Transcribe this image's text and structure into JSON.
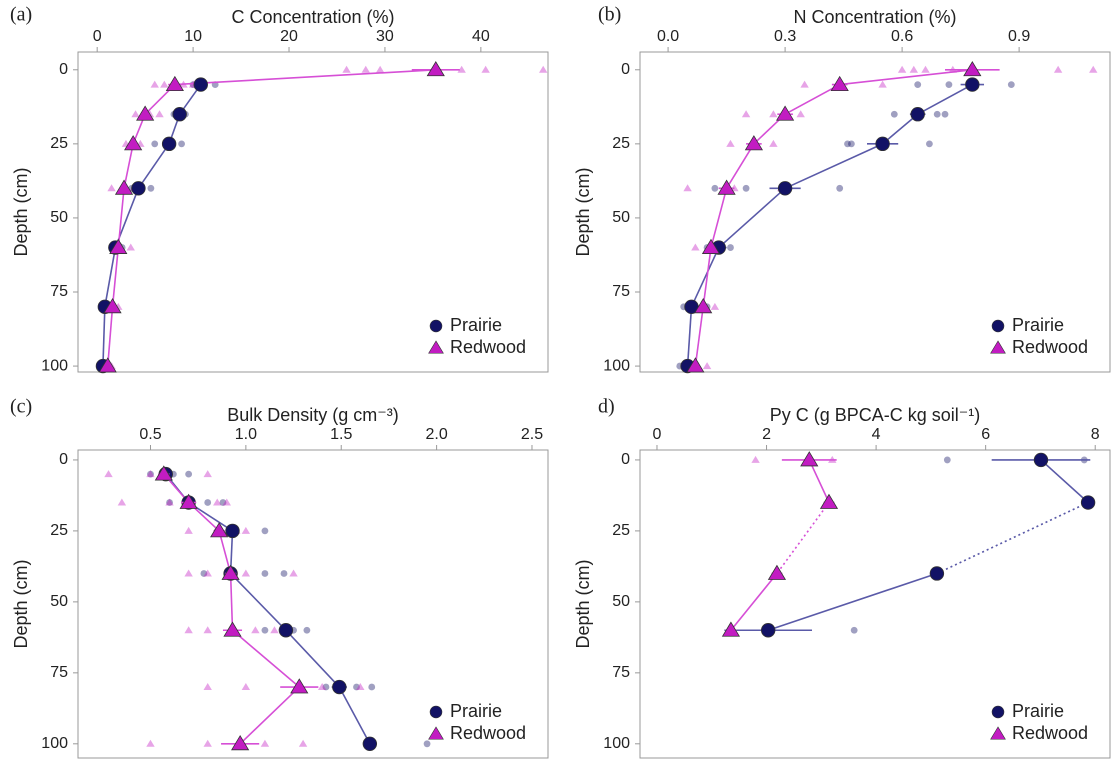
{
  "chart_data": [
    {
      "type": "line",
      "panel": "(a)",
      "title": "C Concentration (%)",
      "ylabel": "Depth (cm)",
      "xlim": [
        -2,
        47
      ],
      "ylim": [
        102,
        -6
      ],
      "xticks": [
        0,
        10,
        20,
        30,
        40
      ],
      "yticks": [
        0,
        25,
        50,
        75,
        100
      ],
      "legend": "bottom-right",
      "series": [
        {
          "name": "Prairie",
          "color": "#121265",
          "line_color": "#5a5aa8",
          "marker": "circle",
          "x": [
            10.8,
            8.6,
            7.5,
            4.3,
            1.9,
            0.8,
            0.6
          ],
          "y": [
            5,
            15,
            25,
            40,
            60,
            80,
            100
          ],
          "errors": [
            0.6,
            0.5,
            0.6,
            0.6,
            0.3,
            0.2,
            0.2
          ],
          "samples": [
            [
              10,
              5
            ],
            [
              12.3,
              5
            ],
            [
              8,
              15
            ],
            [
              9.2,
              15
            ],
            [
              6,
              25
            ],
            [
              8.8,
              25
            ],
            [
              3.6,
              40
            ],
            [
              5.6,
              40
            ],
            [
              1.5,
              60
            ],
            [
              2.6,
              60
            ],
            [
              0.5,
              80
            ],
            [
              1.2,
              80
            ],
            [
              0.3,
              100
            ],
            [
              0.9,
              100
            ]
          ]
        },
        {
          "name": "Redwood",
          "color": "#c21cc2",
          "line_color": "#d64fd6",
          "marker": "triangle",
          "x": [
            35.3,
            8.1,
            5.0,
            3.75,
            2.8,
            2.2,
            1.6,
            1.1
          ],
          "y": [
            0,
            5,
            15,
            25,
            40,
            60,
            80,
            100
          ],
          "errors": [
            2.5,
            0.7,
            0.4,
            0.4,
            0.3,
            0.3,
            0.2,
            0.2
          ],
          "samples": [
            [
              26,
              0
            ],
            [
              28,
              0
            ],
            [
              29.5,
              0
            ],
            [
              38,
              0
            ],
            [
              40.5,
              0
            ],
            [
              46.5,
              0
            ],
            [
              6,
              5
            ],
            [
              7,
              5
            ],
            [
              9,
              5
            ],
            [
              10,
              5
            ],
            [
              4,
              15
            ],
            [
              5.5,
              15
            ],
            [
              6.5,
              15
            ],
            [
              3,
              25
            ],
            [
              4.5,
              25
            ],
            [
              1.5,
              40
            ],
            [
              3.8,
              40
            ],
            [
              1.8,
              60
            ],
            [
              3.5,
              60
            ],
            [
              1,
              80
            ],
            [
              2.2,
              80
            ],
            [
              0.8,
              100
            ],
            [
              1.5,
              100
            ]
          ]
        }
      ]
    },
    {
      "type": "line",
      "panel": "(b)",
      "title": "N Concentration (%)",
      "ylabel": "Depth (cm)",
      "xlim": [
        -0.072,
        1.133
      ],
      "ylim": [
        102,
        -6
      ],
      "xticks": [
        {
          "value": 0,
          "label": "0.0"
        },
        0.3,
        0.6,
        0.9
      ],
      "yticks": [
        0,
        25,
        50,
        75,
        100
      ],
      "legend": "bottom-right",
      "series": [
        {
          "name": "Prairie",
          "color": "#121265",
          "line_color": "#5a5aa8",
          "marker": "circle",
          "x": [
            0.78,
            0.64,
            0.55,
            0.3,
            0.13,
            0.06,
            0.05
          ],
          "y": [
            5,
            15,
            25,
            40,
            60,
            80,
            100
          ],
          "errors": [
            0.03,
            0.02,
            0.04,
            0.04,
            0.02,
            0.01,
            0.01
          ],
          "samples": [
            [
              0.64,
              5
            ],
            [
              0.72,
              5
            ],
            [
              0.88,
              5
            ],
            [
              0.58,
              15
            ],
            [
              0.69,
              15
            ],
            [
              0.71,
              15
            ],
            [
              0.46,
              25
            ],
            [
              0.47,
              25
            ],
            [
              0.67,
              25
            ],
            [
              0.12,
              40
            ],
            [
              0.2,
              40
            ],
            [
              0.44,
              40
            ],
            [
              0.1,
              60
            ],
            [
              0.16,
              60
            ],
            [
              0.04,
              80
            ],
            [
              0.1,
              80
            ],
            [
              0.03,
              100
            ],
            [
              0.07,
              100
            ]
          ]
        },
        {
          "name": "Redwood",
          "color": "#c21cc2",
          "line_color": "#d64fd6",
          "marker": "triangle",
          "x": [
            0.78,
            0.44,
            0.3,
            0.22,
            0.15,
            0.11,
            0.09,
            0.07
          ],
          "y": [
            0,
            5,
            15,
            25,
            40,
            60,
            80,
            100
          ],
          "errors": [
            0.07,
            0.02,
            0.02,
            0.02,
            0.02,
            0.01,
            0.01,
            0.01
          ],
          "samples": [
            [
              0.6,
              0
            ],
            [
              0.63,
              0
            ],
            [
              0.66,
              0
            ],
            [
              0.73,
              0
            ],
            [
              1.0,
              0
            ],
            [
              1.09,
              0
            ],
            [
              0.35,
              5
            ],
            [
              0.55,
              5
            ],
            [
              0.2,
              15
            ],
            [
              0.27,
              15
            ],
            [
              0.34,
              15
            ],
            [
              0.16,
              25
            ],
            [
              0.27,
              25
            ],
            [
              0.05,
              40
            ],
            [
              0.17,
              40
            ],
            [
              0.29,
              40
            ],
            [
              0.07,
              60
            ],
            [
              0.13,
              60
            ],
            [
              0.07,
              80
            ],
            [
              0.12,
              80
            ],
            [
              0.05,
              100
            ],
            [
              0.1,
              100
            ]
          ]
        }
      ]
    },
    {
      "type": "line",
      "panel": "(c)",
      "title": "Bulk Density (g cm⁻³)",
      "ylabel": "Depth (cm)",
      "xlim": [
        0.12,
        2.584
      ],
      "ylim": [
        105,
        -3.5
      ],
      "xticks": [
        0.5,
        {
          "value": 1,
          "label": "1.0"
        },
        1.5,
        {
          "value": 2,
          "label": "2.0"
        },
        2.5
      ],
      "yticks": [
        0,
        25,
        50,
        75,
        100
      ],
      "legend": "bottom-right",
      "series": [
        {
          "name": "Prairie",
          "color": "#121265",
          "line_color": "#5a5aa8",
          "marker": "circle",
          "x": [
            0.58,
            0.7,
            0.93,
            0.92,
            1.21,
            1.49,
            1.65
          ],
          "y": [
            5,
            15,
            25,
            40,
            60,
            80,
            100
          ],
          "errors": [
            0.03,
            0.03,
            0.03,
            0.03,
            0.03,
            0.04,
            0.03
          ],
          "samples": [
            [
              0.5,
              5
            ],
            [
              0.62,
              5
            ],
            [
              0.7,
              5
            ],
            [
              0.6,
              15
            ],
            [
              0.8,
              15
            ],
            [
              0.88,
              15
            ],
            [
              0.85,
              25
            ],
            [
              1.1,
              25
            ],
            [
              0.78,
              40
            ],
            [
              1.1,
              40
            ],
            [
              1.2,
              40
            ],
            [
              1.1,
              60
            ],
            [
              1.25,
              60
            ],
            [
              1.32,
              60
            ],
            [
              1.42,
              80
            ],
            [
              1.58,
              80
            ],
            [
              1.66,
              80
            ],
            [
              1.64,
              100
            ],
            [
              1.95,
              100
            ]
          ]
        },
        {
          "name": "Redwood",
          "color": "#c21cc2",
          "line_color": "#d64fd6",
          "marker": "triangle",
          "x": [
            0.57,
            0.7,
            0.86,
            0.92,
            0.93,
            1.28,
            0.97
          ],
          "y": [
            5,
            15,
            25,
            40,
            60,
            80,
            100
          ],
          "errors": [
            0.03,
            0.04,
            0.03,
            0.03,
            0.05,
            0.1,
            0.1
          ],
          "samples": [
            [
              0.28,
              5
            ],
            [
              0.5,
              5
            ],
            [
              0.8,
              5
            ],
            [
              0.35,
              15
            ],
            [
              0.6,
              15
            ],
            [
              0.85,
              15
            ],
            [
              0.9,
              15
            ],
            [
              0.7,
              25
            ],
            [
              0.95,
              25
            ],
            [
              1.0,
              25
            ],
            [
              0.7,
              40
            ],
            [
              0.8,
              40
            ],
            [
              1.0,
              40
            ],
            [
              1.25,
              40
            ],
            [
              0.7,
              60
            ],
            [
              0.8,
              60
            ],
            [
              1.05,
              60
            ],
            [
              1.15,
              60
            ],
            [
              0.8,
              80
            ],
            [
              1.0,
              80
            ],
            [
              1.4,
              80
            ],
            [
              1.6,
              80
            ],
            [
              0.5,
              100
            ],
            [
              0.8,
              100
            ],
            [
              1.1,
              100
            ],
            [
              1.3,
              100
            ]
          ]
        }
      ]
    },
    {
      "type": "line",
      "panel": "d)",
      "title": "Py C (g BPCA-C kg soil⁻¹)",
      "ylabel": "Depth (cm)",
      "xlim": [
        -0.31,
        8.27
      ],
      "ylim": [
        105,
        -3.5
      ],
      "xticks": [
        0,
        2,
        4,
        6,
        8
      ],
      "yticks": [
        0,
        25,
        50,
        75,
        100
      ],
      "legend": "bottom-right",
      "series": [
        {
          "name": "Prairie",
          "color": "#121265",
          "line_color": "#5a5aa8",
          "marker": "circle",
          "x": [
            7.01,
            7.87,
            5.11,
            2.03
          ],
          "y": [
            0,
            15,
            40,
            60
          ],
          "errors": [
            0.9,
            0.1,
            0.1,
            0.8
          ],
          "dotted_segments": [
            1
          ],
          "samples": [
            [
              5.3,
              0
            ],
            [
              7.8,
              0
            ],
            [
              3.6,
              60
            ]
          ]
        },
        {
          "name": "Redwood",
          "color": "#c21cc2",
          "line_color": "#d64fd6",
          "marker": "triangle",
          "x": [
            2.78,
            3.14,
            2.19,
            1.35
          ],
          "y": [
            0,
            15,
            40,
            60
          ],
          "errors": [
            0.5,
            0.1,
            0.1,
            0.1
          ],
          "dotted_segments": [
            1
          ],
          "samples": [
            [
              1.8,
              0
            ],
            [
              3.2,
              0
            ]
          ]
        }
      ]
    }
  ]
}
